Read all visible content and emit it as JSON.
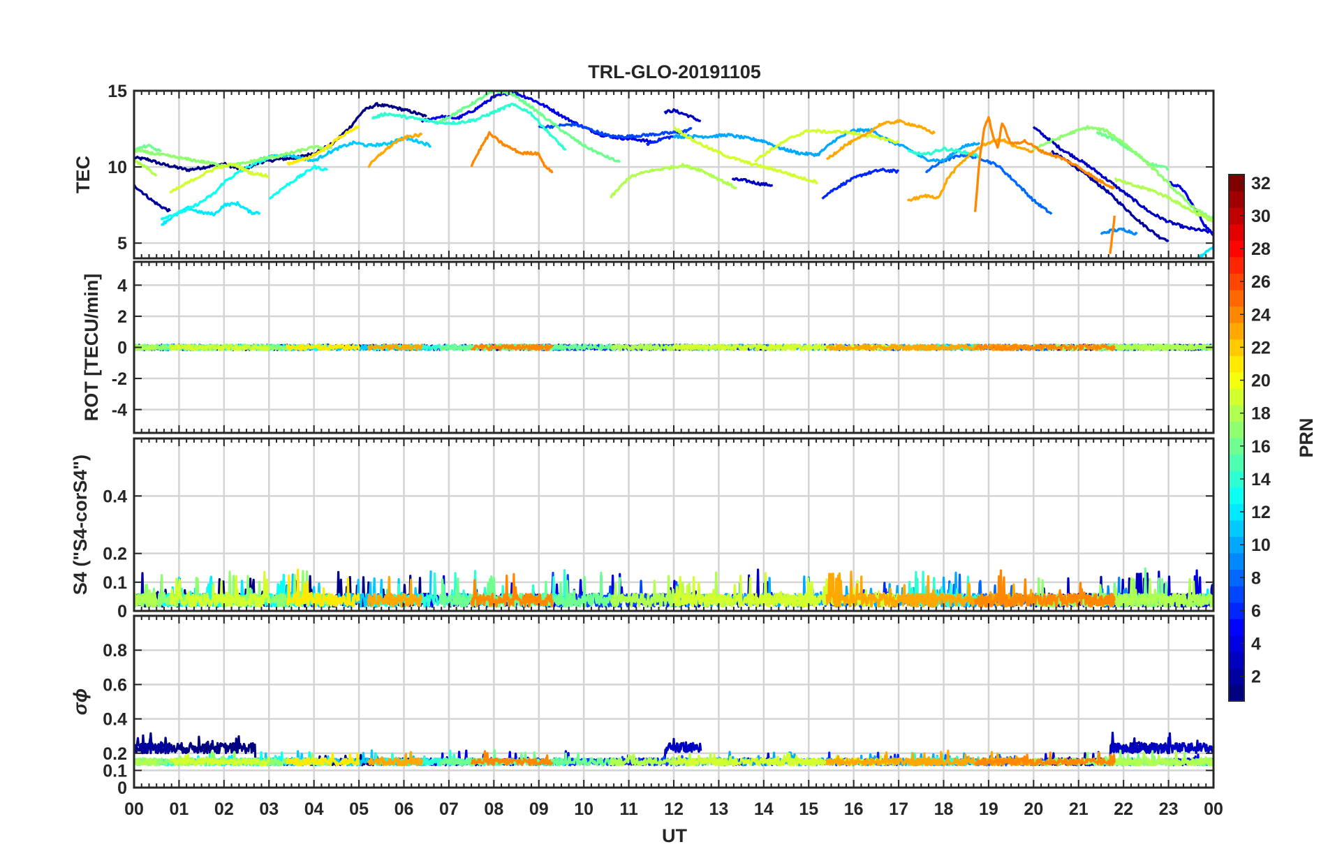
{
  "chart_data": {
    "type": "line",
    "title": "TRL-GLO-20191105",
    "xlabel": "UT",
    "x_tick_labels": [
      "00",
      "01",
      "02",
      "03",
      "04",
      "05",
      "06",
      "07",
      "08",
      "09",
      "10",
      "11",
      "12",
      "13",
      "14",
      "15",
      "16",
      "17",
      "18",
      "19",
      "20",
      "21",
      "22",
      "23",
      "00"
    ],
    "xlim": [
      0,
      24
    ],
    "panels": [
      {
        "key": "tec",
        "ylabel": "TEC",
        "ylim": [
          4,
          15
        ],
        "yticks": [
          5,
          10,
          15
        ],
        "series": [
          {
            "prn": 1,
            "x": [
              0.0,
              0.3,
              0.6,
              0.9,
              1.2,
              1.6,
              2.0,
              2.4,
              2.8,
              3.2,
              3.6,
              4.0,
              4.4,
              4.8,
              5.1,
              5.4,
              5.8,
              6.2,
              6.5
            ],
            "y": [
              10.6,
              10.5,
              10.2,
              10.0,
              9.8,
              10.0,
              10.2,
              9.8,
              10.3,
              10.5,
              10.6,
              10.9,
              11.5,
              12.6,
              13.7,
              14.1,
              13.9,
              13.6,
              13.3
            ]
          },
          {
            "prn": 2,
            "x": [
              0.0,
              0.2,
              0.4,
              0.6,
              0.8
            ],
            "y": [
              8.8,
              8.3,
              7.8,
              7.4,
              7.1
            ]
          },
          {
            "prn": 2,
            "x": [
              20.4,
              20.8,
              21.2,
              21.6,
              22.0,
              22.4,
              22.8,
              23.0
            ],
            "y": [
              11.0,
              10.3,
              9.4,
              8.5,
              7.4,
              6.3,
              5.4,
              5.2
            ]
          },
          {
            "prn": 3,
            "x": [
              11.8,
              12.0,
              12.3,
              12.6
            ],
            "y": [
              13.6,
              13.7,
              13.4,
              13.0
            ]
          },
          {
            "prn": 3,
            "x": [
              13.3,
              13.6,
              13.9,
              14.2
            ],
            "y": [
              9.2,
              9.1,
              8.9,
              8.8
            ]
          },
          {
            "prn": 3,
            "x": [
              20.0,
              20.3,
              20.6,
              21.0,
              21.4,
              21.8,
              22.2,
              22.6,
              23.0,
              23.4,
              23.8,
              24.0
            ],
            "y": [
              12.6,
              11.9,
              11.2,
              10.5,
              9.7,
              8.8,
              7.9,
              7.0,
              6.4,
              6.0,
              5.8,
              5.7
            ]
          },
          {
            "prn": 4,
            "x": [
              6.4,
              6.8,
              7.2,
              7.6,
              8.0,
              8.4,
              8.8,
              9.2,
              9.6,
              10.0,
              10.4,
              10.8,
              11.2,
              11.6
            ],
            "y": [
              13.0,
              13.3,
              13.2,
              13.8,
              14.6,
              14.9,
              14.5,
              13.9,
              13.2,
              12.6,
              12.1,
              11.9,
              11.8,
              11.6
            ]
          },
          {
            "prn": 4,
            "x": [
              23.0,
              23.3,
              23.6,
              23.8,
              24.0
            ],
            "y": [
              9.0,
              8.6,
              7.2,
              6.2,
              5.5
            ]
          },
          {
            "prn": 6,
            "x": [
              15.3,
              15.6,
              15.9,
              16.2,
              16.6,
              17.0
            ],
            "y": [
              8.0,
              8.6,
              9.1,
              9.5,
              9.8,
              9.7
            ]
          },
          {
            "prn": 6,
            "x": [
              11.4,
              11.6,
              11.8,
              12.0
            ],
            "y": [
              11.5,
              11.7,
              11.9,
              12.0
            ]
          },
          {
            "prn": 7,
            "x": [
              9.0,
              9.4,
              9.8,
              10.2,
              10.6,
              11.0,
              11.4,
              11.8,
              12.2,
              12.4
            ],
            "y": [
              12.6,
              12.7,
              12.8,
              12.4,
              12.0,
              12.0,
              12.1,
              12.2,
              12.3,
              12.5
            ]
          },
          {
            "prn": 8,
            "x": [
              17.6,
              18.0,
              18.4,
              18.8,
              19.2,
              19.6,
              20.0,
              20.4
            ],
            "y": [
              9.7,
              10.4,
              10.8,
              10.6,
              10.1,
              9.0,
              7.8,
              6.9
            ]
          },
          {
            "prn": 9,
            "x": [
              21.5,
              21.7,
              22.0,
              22.3
            ],
            "y": [
              5.6,
              5.8,
              5.9,
              5.6
            ]
          },
          {
            "prn": 10,
            "x": [
              12.0,
              12.4,
              12.8,
              13.2,
              13.6,
              14.0,
              14.4,
              14.8,
              15.2,
              15.6,
              16.0,
              16.4,
              16.8,
              17.2,
              17.6,
              18.0,
              18.4,
              18.8
            ],
            "y": [
              12.0,
              12.0,
              12.0,
              12.1,
              11.9,
              11.7,
              11.2,
              10.9,
              10.8,
              11.8,
              12.4,
              12.4,
              11.7,
              11.2,
              10.5,
              10.4,
              11.3,
              11.6
            ]
          },
          {
            "prn": 11,
            "x": [
              2.8,
              3.1,
              3.4,
              3.7,
              4.0,
              4.3,
              4.6,
              4.9,
              5.2,
              5.6,
              6.0,
              6.3,
              6.6
            ],
            "y": [
              10.5,
              10.7,
              10.8,
              10.6,
              10.4,
              10.9,
              11.3,
              11.6,
              11.4,
              11.5,
              11.9,
              11.7,
              11.4
            ]
          },
          {
            "prn": 12,
            "x": [
              0.6,
              0.9,
              1.2,
              1.5,
              1.8,
              2.0,
              2.3,
              2.6,
              2.8
            ],
            "y": [
              6.2,
              6.8,
              7.3,
              7.0,
              6.9,
              7.5,
              7.6,
              7.0,
              7.0
            ]
          },
          {
            "prn": 12,
            "x": [
              23.6,
              23.8,
              24.0
            ],
            "y": [
              3.9,
              4.3,
              4.8
            ]
          },
          {
            "prn": 13,
            "x": [
              0.6,
              0.9,
              1.2,
              1.5,
              1.8,
              2.0,
              2.3,
              2.6,
              3.0,
              3.3
            ],
            "y": [
              6.6,
              6.9,
              7.2,
              7.7,
              8.3,
              9.0,
              9.6,
              10.1,
              10.6,
              10.8
            ]
          },
          {
            "prn": 13,
            "x": [
              3.0,
              3.3,
              3.7,
              4.0,
              4.3
            ],
            "y": [
              7.9,
              8.6,
              9.4,
              10.0,
              9.8
            ]
          },
          {
            "prn": 14,
            "x": [
              5.3,
              5.6,
              6.0,
              6.4,
              6.8,
              7.2,
              7.6,
              8.0,
              8.4,
              8.8,
              9.2,
              9.6
            ],
            "y": [
              13.2,
              13.5,
              13.3,
              13.1,
              12.9,
              12.9,
              13.1,
              13.6,
              14.1,
              13.6,
              12.3,
              11.1
            ]
          },
          {
            "prn": 14,
            "x": [
              17.2,
              17.6,
              18.0,
              18.4,
              18.8
            ],
            "y": [
              11.0,
              10.8,
              11.2,
              11.0,
              10.7
            ]
          },
          {
            "prn": 16,
            "x": [
              0.0,
              0.3,
              0.6
            ],
            "y": [
              11.1,
              11.4,
              11.0
            ]
          },
          {
            "prn": 16,
            "x": [
              21.4,
              21.8,
              22.2,
              22.6,
              23.0
            ],
            "y": [
              12.3,
              11.8,
              11.0,
              10.2,
              9.9
            ]
          },
          {
            "prn": 16,
            "x": [
              6.8,
              7.2,
              7.6,
              8.0,
              8.4,
              8.8,
              9.2,
              9.6,
              10.0,
              10.4,
              10.8
            ],
            "y": [
              13.0,
              13.6,
              14.3,
              15.0,
              14.8,
              14.0,
              13.1,
              12.2,
              11.4,
              10.8,
              10.3
            ]
          },
          {
            "prn": 17,
            "x": [
              0.0,
              0.4,
              0.8,
              1.2,
              1.6,
              2.0,
              2.4,
              2.8,
              3.2,
              3.6,
              4.0,
              4.4
            ],
            "y": [
              11.1,
              10.9,
              10.7,
              10.5,
              10.3,
              10.1,
              10.2,
              10.5,
              10.7,
              11.0,
              11.3,
              11.2
            ]
          },
          {
            "prn": 17,
            "x": [
              20.0,
              20.4,
              20.8,
              21.2,
              21.6,
              22.0,
              22.4,
              22.8,
              23.2,
              23.6,
              24.0
            ],
            "y": [
              11.2,
              11.7,
              12.2,
              12.6,
              12.4,
              11.6,
              10.6,
              9.5,
              8.3,
              7.2,
              6.6
            ]
          },
          {
            "prn": 18,
            "x": [
              0.0,
              0.3,
              0.5
            ],
            "y": [
              10.4,
              9.9,
              9.4
            ]
          },
          {
            "prn": 18,
            "x": [
              10.6,
              11.0,
              11.4,
              11.8,
              12.2,
              12.6,
              13.0,
              13.4
            ],
            "y": [
              8.0,
              9.3,
              9.7,
              9.9,
              10.1,
              9.8,
              9.2,
              8.6
            ]
          },
          {
            "prn": 18,
            "x": [
              21.8,
              22.2,
              22.6,
              23.0,
              23.4,
              24.0
            ],
            "y": [
              9.2,
              8.8,
              8.5,
              8.0,
              7.3,
              6.4
            ]
          },
          {
            "prn": 19,
            "x": [
              0.8,
              1.1,
              1.4,
              1.8,
              2.2,
              2.6,
              3.0
            ],
            "y": [
              8.3,
              8.8,
              9.3,
              9.9,
              10.2,
              9.6,
              9.4
            ]
          },
          {
            "prn": 19,
            "x": [
              12.0,
              12.4,
              12.8,
              13.2,
              13.6,
              14.0,
              14.4,
              14.8,
              15.2
            ],
            "y": [
              12.6,
              11.8,
              11.2,
              10.7,
              10.3,
              10.0,
              9.7,
              9.3,
              9.0
            ]
          },
          {
            "prn": 19,
            "x": [
              13.8,
              14.2,
              14.6,
              15.0,
              15.4,
              15.8,
              16.2,
              16.6,
              17.0
            ],
            "y": [
              10.4,
              11.2,
              11.9,
              12.4,
              12.3,
              12.3,
              12.1,
              11.9,
              11.6
            ]
          },
          {
            "prn": 21,
            "x": [
              3.4,
              3.8,
              4.2,
              4.6,
              5.0
            ],
            "y": [
              10.2,
              10.5,
              11.1,
              12.0,
              12.7
            ]
          },
          {
            "prn": 23,
            "x": [
              5.2,
              5.5,
              5.8,
              6.1,
              6.4
            ],
            "y": [
              10.0,
              10.9,
              11.6,
              12.0,
              12.1
            ]
          },
          {
            "prn": 23,
            "x": [
              15.4,
              15.8,
              16.2,
              16.6,
              17.0,
              17.4,
              17.8
            ],
            "y": [
              10.5,
              11.4,
              12.0,
              12.8,
              13.0,
              12.7,
              12.2
            ]
          },
          {
            "prn": 23,
            "x": [
              17.2,
              17.6,
              17.9,
              18.1,
              18.4,
              18.7,
              19.0,
              19.3,
              19.6,
              20.0
            ],
            "y": [
              7.8,
              8.1,
              8.0,
              9.3,
              10.3,
              11.1,
              11.6,
              11.8,
              11.3,
              11.0
            ]
          },
          {
            "prn": 24,
            "x": [
              7.5,
              7.7,
              7.9,
              8.2,
              8.6,
              9.0,
              9.1,
              9.3
            ],
            "y": [
              10.1,
              11.2,
              12.2,
              11.5,
              10.9,
              10.9,
              10.2,
              9.6
            ]
          },
          {
            "prn": 24,
            "x": [
              18.7,
              18.8,
              18.9,
              19.0,
              19.1,
              19.2,
              19.3,
              19.5,
              19.8,
              20.2,
              20.6,
              21.0,
              21.4,
              21.8
            ],
            "y": [
              7.1,
              10.5,
              12.5,
              13.3,
              12.0,
              11.2,
              12.9,
              11.5,
              11.7,
              11.0,
              10.6,
              10.0,
              9.2,
              8.6
            ]
          },
          {
            "prn": 24,
            "x": [
              21.7,
              21.75,
              21.8
            ],
            "y": [
              4.3,
              5.5,
              6.8
            ]
          }
        ]
      },
      {
        "key": "rot",
        "ylabel": "ROT [TECU/min]",
        "ylim": [
          -5.5,
          5.5
        ],
        "yticks": [
          -4,
          -2,
          0,
          2,
          4
        ]
      },
      {
        "key": "s4",
        "ylabel": "S4 (\"S4-corS4\")",
        "ylim": [
          0,
          0.6
        ],
        "yticks": [
          0,
          0.1,
          0.2,
          0.4
        ],
        "ytick_labels": [
          "0",
          "0.1",
          "0.2",
          "0.4"
        ]
      },
      {
        "key": "sigma",
        "ylabel": "σϕ",
        "ylim": [
          0,
          1.0
        ],
        "yticks": [
          0,
          0.1,
          0.2,
          0.4,
          0.6,
          0.8
        ],
        "ytick_labels": [
          "0",
          "0.1",
          "0.2",
          "0.4",
          "0.6",
          "0.8"
        ]
      }
    ],
    "colorbar": {
      "label": "PRN",
      "range": [
        1,
        32
      ],
      "tick_labels": [
        "2",
        "4",
        "6",
        "8",
        "10",
        "12",
        "14",
        "16",
        "18",
        "20",
        "22",
        "24",
        "26",
        "28",
        "30",
        "32"
      ]
    }
  }
}
